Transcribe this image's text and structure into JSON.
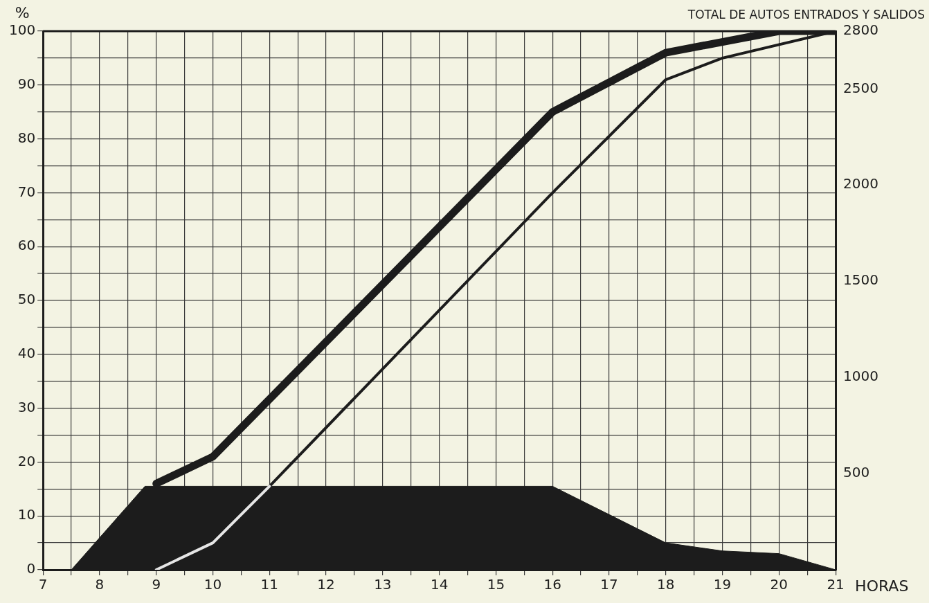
{
  "chart_data": {
    "type": "line",
    "xlabel": "HORAS",
    "ylabel": "%",
    "y2label": "TOTAL DE AUTOS ENTRADOS Y SALIDOS",
    "xlim": [
      7,
      21
    ],
    "xticks": [
      7,
      {
        "value": 7.5,
        "label": null
      },
      8,
      {
        "value": 8.5,
        "label": null
      },
      9,
      {
        "value": 9.5,
        "label": null
      },
      10,
      {
        "value": 10.5,
        "label": null
      },
      11,
      {
        "value": 11.5,
        "label": null
      },
      12,
      {
        "value": 12.5,
        "label": null
      },
      13,
      {
        "value": 13.5,
        "label": null
      },
      14,
      {
        "value": 14.5,
        "label": null
      },
      15,
      {
        "value": 15.5,
        "label": null
      },
      16,
      {
        "value": 16.5,
        "label": null
      },
      17,
      {
        "value": 17.5,
        "label": null
      },
      18,
      {
        "value": 18.5,
        "label": null
      },
      19,
      {
        "value": 19.5,
        "label": null
      },
      20,
      {
        "value": 20.5,
        "label": null
      },
      21
    ],
    "ylim": [
      0,
      100
    ],
    "yticks": [
      0,
      {
        "value": 5,
        "label": null
      },
      10,
      {
        "value": 15,
        "label": null
      },
      20,
      {
        "value": 25,
        "label": null
      },
      30,
      {
        "value": 35,
        "label": null
      },
      40,
      {
        "value": 45,
        "label": null
      },
      50,
      {
        "value": 55,
        "label": null
      },
      60,
      {
        "value": 65,
        "label": null
      },
      70,
      {
        "value": 75,
        "label": null
      },
      80,
      {
        "value": 85,
        "label": null
      },
      90,
      {
        "value": 95,
        "label": null
      },
      100
    ],
    "y2lim": [
      0,
      2800
    ],
    "y2ticks": [
      500,
      1000,
      1500,
      2000,
      2500,
      2800
    ],
    "grid": true,
    "legend": false,
    "marker": "none",
    "series": [
      {
        "type": "area",
        "color": "#1c1c1c",
        "x": [
          7.5,
          8.8,
          16,
          18,
          19,
          20,
          21
        ],
        "values": [
          0,
          15.5,
          15.5,
          5,
          3.5,
          3,
          0
        ]
      },
      {
        "type": "line",
        "color": "#1c1c1c",
        "x": [
          9,
          10,
          16,
          18,
          20,
          21
        ],
        "values": [
          16,
          21,
          85,
          96,
          100,
          100
        ]
      },
      {
        "type": "line",
        "color": "#e6e6e6",
        "x": [
          9,
          10,
          11
        ],
        "values": [
          0,
          5,
          15.5
        ]
      },
      {
        "type": "line",
        "color": "#1c1c1c",
        "x": [
          11,
          16,
          18,
          19,
          21
        ],
        "values": [
          15.5,
          70,
          91,
          95,
          100
        ]
      }
    ]
  }
}
